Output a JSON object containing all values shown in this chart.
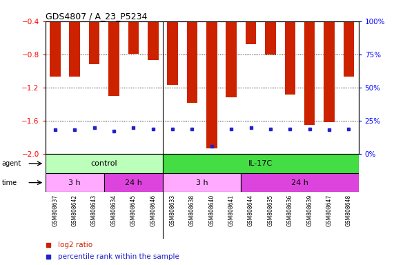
{
  "title": "GDS4807 / A_23_P5234",
  "samples": [
    "GSM808637",
    "GSM808642",
    "GSM808643",
    "GSM808634",
    "GSM808645",
    "GSM808646",
    "GSM808633",
    "GSM808638",
    "GSM808640",
    "GSM808641",
    "GSM808644",
    "GSM808635",
    "GSM808636",
    "GSM808639",
    "GSM808647",
    "GSM808648"
  ],
  "log2_values": [
    -1.07,
    -1.07,
    -0.92,
    -1.3,
    -0.79,
    -0.87,
    -1.17,
    -1.38,
    -1.93,
    -1.32,
    -0.68,
    -0.8,
    -1.28,
    -1.65,
    -1.62,
    -1.07
  ],
  "percentile_pct": [
    18,
    18,
    20,
    17,
    20,
    19,
    19,
    19,
    6,
    19,
    20,
    19,
    19,
    19,
    18,
    19
  ],
  "ylim_left": [
    -2.0,
    -0.4
  ],
  "ylim_right": [
    0,
    100
  ],
  "yticks_left": [
    -2.0,
    -1.6,
    -1.2,
    -0.8,
    -0.4
  ],
  "yticks_right": [
    0,
    25,
    50,
    75,
    100
  ],
  "ytick_labels_right": [
    "0%",
    "25%",
    "50%",
    "75%",
    "100%"
  ],
  "bar_color": "#cc2200",
  "blue_color": "#2222cc",
  "agent_groups": [
    {
      "label": "control",
      "start": 0,
      "end": 6,
      "color": "#bbffbb"
    },
    {
      "label": "IL-17C",
      "start": 6,
      "end": 16,
      "color": "#44dd44"
    }
  ],
  "time_groups": [
    {
      "label": "3 h",
      "start": 0,
      "end": 3,
      "color": "#ffaaff"
    },
    {
      "label": "24 h",
      "start": 3,
      "end": 6,
      "color": "#dd44dd"
    },
    {
      "label": "3 h",
      "start": 6,
      "end": 10,
      "color": "#ffaaff"
    },
    {
      "label": "24 h",
      "start": 10,
      "end": 16,
      "color": "#dd44dd"
    }
  ],
  "bg_color": "#ffffff",
  "bar_width": 0.55
}
